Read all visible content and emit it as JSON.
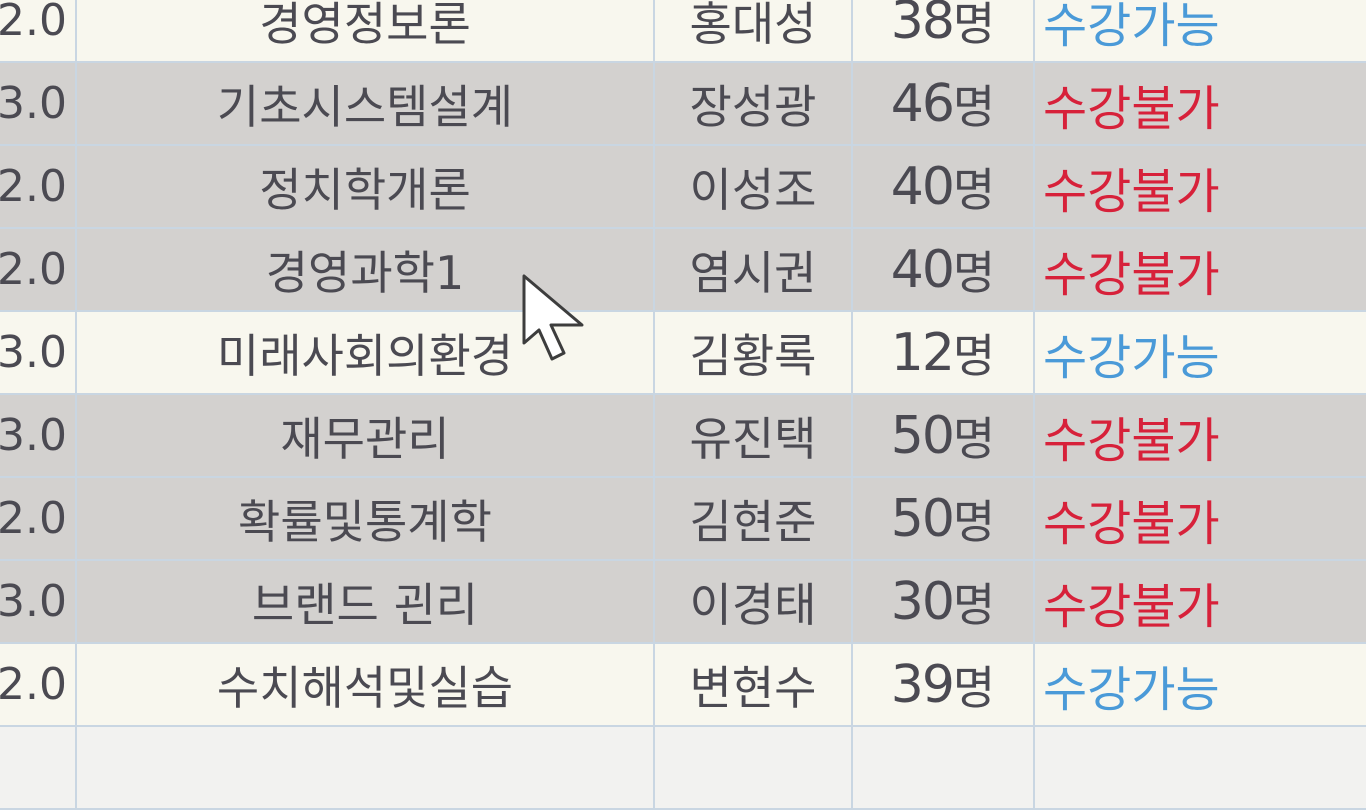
{
  "colors": {
    "open_status": "#4a9ad8",
    "closed_status": "#d7213a",
    "open_row_bg": "#f8f7ee",
    "closed_row_bg": "#d3d1cf",
    "grid_line": "#c9d6e2"
  },
  "cursor": {
    "icon": "mouse-pointer-icon"
  },
  "courses": [
    {
      "credit": "2.0",
      "name": "경영정보론",
      "professor": "홍대성",
      "count": "38",
      "unit": "명",
      "status": "수강가능"
    },
    {
      "credit": "3.0",
      "name": "기초시스템설계",
      "professor": "장성광",
      "count": "46",
      "unit": "명",
      "status": "수강불가"
    },
    {
      "credit": "2.0",
      "name": "정치학개론",
      "professor": "이성조",
      "count": "40",
      "unit": "명",
      "status": "수강불가"
    },
    {
      "credit": "2.0",
      "name": "경영과학1",
      "professor": "염시권",
      "count": "40",
      "unit": "명",
      "status": "수강불가"
    },
    {
      "credit": "3.0",
      "name": "미래사회의환경",
      "professor": "김황록",
      "count": "12",
      "unit": "명",
      "status": "수강가능"
    },
    {
      "credit": "3.0",
      "name": "재무관리",
      "professor": "유진택",
      "count": "50",
      "unit": "명",
      "status": "수강불가"
    },
    {
      "credit": "2.0",
      "name": "확률및통계학",
      "professor": "김현준",
      "count": "50",
      "unit": "명",
      "status": "수강불가"
    },
    {
      "credit": "3.0",
      "name": "브랜드 괸리",
      "professor": "이경태",
      "count": "30",
      "unit": "명",
      "status": "수강불가"
    },
    {
      "credit": "2.0",
      "name": "수치해석및실습",
      "professor": "변현수",
      "count": "39",
      "unit": "명",
      "status": "수강가능"
    }
  ]
}
